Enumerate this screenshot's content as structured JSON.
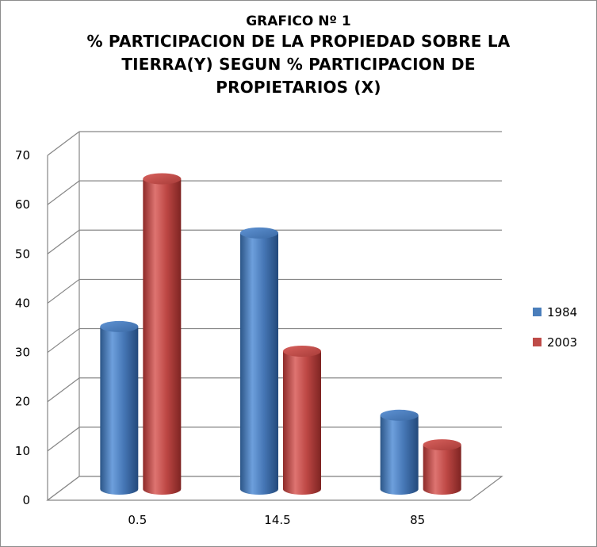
{
  "chart_data": {
    "type": "bar",
    "title_lines": [
      "GRAFICO Nº 1",
      "% PARTICIPACION DE LA PROPIEDAD SOBRE LA",
      "TIERRA(Y) SEGUN %  PARTICIPACION DE",
      "PROPIETARIOS (X)"
    ],
    "categories": [
      "0.5",
      "14.5",
      "85"
    ],
    "series": [
      {
        "name": "1984",
        "values": [
          33,
          52,
          15
        ],
        "color": "#4a7ebb"
      },
      {
        "name": "2003",
        "values": [
          63,
          28,
          9
        ],
        "color": "#be4b48"
      }
    ],
    "ylim": [
      0,
      70
    ],
    "yticks": [
      "0",
      "10",
      "20",
      "30",
      "40",
      "50",
      "60",
      "70"
    ],
    "grid": true,
    "legend_position": "right",
    "style": "3d-cylinder"
  }
}
